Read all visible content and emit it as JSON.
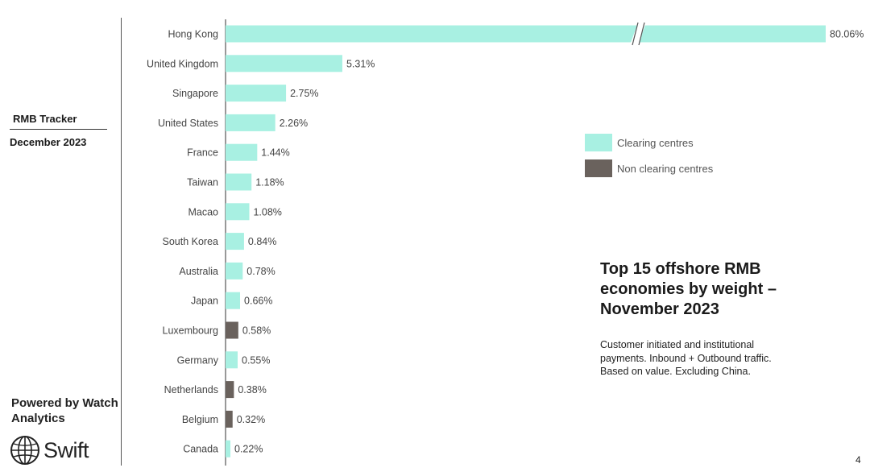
{
  "sidebar": {
    "tracker_title": "RMB Tracker",
    "date": "December 2023",
    "powered_by": "Powered by Watch Analytics",
    "logo_text": "Swift"
  },
  "colors": {
    "clearing": "#a8f0e2",
    "non_clearing": "#6a625d",
    "label": "#444444",
    "axis": "#555555"
  },
  "legend": {
    "clearing_label": "Clearing centres",
    "non_clearing_label": "Non clearing centres"
  },
  "heading": {
    "title": "Top 15 offshore RMB economies by weight – November 2023",
    "subtitle": "Customer initiated and institutional payments. Inbound + Outbound traffic. Based on value. Excluding China."
  },
  "page_number": "4",
  "chart_data": {
    "type": "bar",
    "orientation": "horizontal",
    "title": "Top 15 offshore RMB economies by weight – November 2023",
    "categories": [
      "Hong Kong",
      "United Kingdom",
      "Singapore",
      "United States",
      "France",
      "Taiwan",
      "Macao",
      "South Korea",
      "Australia",
      "Japan",
      "Luxembourg",
      "Germany",
      "Netherlands",
      "Belgium",
      "Canada"
    ],
    "values": [
      80.06,
      5.31,
      2.75,
      2.26,
      1.44,
      1.18,
      1.08,
      0.84,
      0.78,
      0.66,
      0.58,
      0.55,
      0.38,
      0.32,
      0.22
    ],
    "value_labels": [
      "80.06%",
      "5.31%",
      "2.75%",
      "2.26%",
      "1.44%",
      "1.18%",
      "1.08%",
      "0.84%",
      "0.78%",
      "0.66%",
      "0.58%",
      "0.55%",
      "0.38%",
      "0.32%",
      "0.22%"
    ],
    "clearing_centre": [
      true,
      true,
      true,
      true,
      true,
      true,
      true,
      true,
      true,
      true,
      false,
      true,
      false,
      false,
      true
    ],
    "series": [
      {
        "name": "Clearing centres"
      },
      {
        "name": "Non clearing centres"
      }
    ],
    "axis_break": true,
    "grid": false,
    "legend_position": "right"
  }
}
